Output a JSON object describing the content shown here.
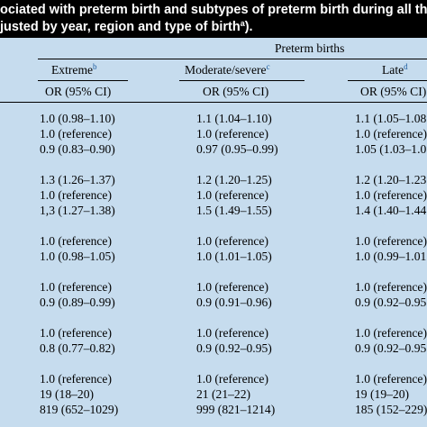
{
  "caption": {
    "line1": "ociated with preterm birth and subtypes of preterm birth during all th",
    "line2_before": "justed by year, region and type of birth",
    "line2_sup": "a",
    "line2_after": ")."
  },
  "table": {
    "group_header": "Preterm births",
    "columns": [
      {
        "label": "Extreme",
        "sup": "b",
        "sub": "OR (95% CI)"
      },
      {
        "label": "Moderate/severe",
        "sup": "c",
        "sub": "OR (95% CI)"
      },
      {
        "label": "Late",
        "sup": "d",
        "sub": "OR (95% CI)"
      }
    ],
    "rows": [
      [
        "1.0 (0.98–1.10)",
        "1.1 (1.04–1.10)",
        "1.1 (1.05–1.08"
      ],
      [
        "1.0 (reference)",
        "1.0 (reference)",
        "1.0 (reference)"
      ],
      [
        "0.9 (0.83–0.90)",
        "0.97 (0.95–0.99)",
        "1.05 (1.03–1.0"
      ],
      [
        "1.3 (1.26–1.37)",
        "1.2 (1.20–1.25)",
        "1.2 (1.20–1.23"
      ],
      [
        "1.0 (reference)",
        "1.0 (reference)",
        "1.0 (reference)"
      ],
      [
        "1,3 (1.27–1.38)",
        "1.5 (1.49–1.55)",
        "1.4 (1.40–1.44"
      ],
      [
        "1.0 (reference)",
        "1.0 (reference)",
        "1.0 (reference)"
      ],
      [
        "1.0 (0.98–1.05)",
        "1.0 (1.01–1.05)",
        "1.0 (0.99–1.01"
      ],
      [
        "1.0 (reference)",
        "1.0 (reference)",
        "1.0 (reference)"
      ],
      [
        "0.9 (0.89–0.99)",
        "0.9 (0.91–0.96)",
        "0.9 (0.92–0.95"
      ],
      [
        "1.0 (reference)",
        "1.0 (reference)",
        "1.0 (reference)"
      ],
      [
        "0.8 (0.77–0.82)",
        "0.9 (0.92–0.95)",
        "0.9 (0.92–0.95"
      ],
      [
        "1.0 (reference)",
        "1.0 (reference)",
        "1.0 (reference)"
      ],
      [
        "19 (18–20)",
        "21 (21–22)",
        "19 (19–20)"
      ],
      [
        "819 (652–1029)",
        "999 (821–1214)",
        "185 (152–229)"
      ]
    ]
  }
}
